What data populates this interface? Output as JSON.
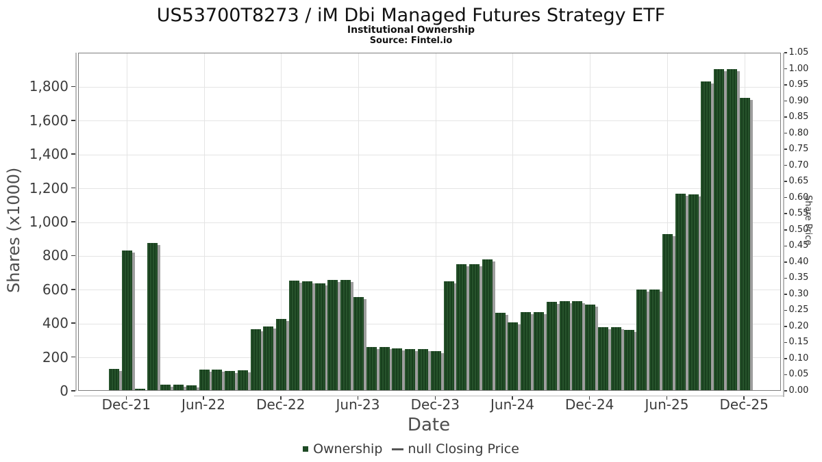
{
  "header": {
    "title": "US53700T8273 / iM Dbi Managed Futures Strategy ETF",
    "subtitle": "Institutional Ownership",
    "source": "Source: Fintel.io"
  },
  "chart_data": {
    "type": "bar",
    "title": "US53700T8273 / iM Dbi Managed Futures Strategy ETF",
    "subtitle": "Institutional Ownership",
    "source": "Source: Fintel.io",
    "xlabel": "Date",
    "ylabel_left": "Shares (x1000)",
    "ylabel_right": "Share Price",
    "x": [
      "Nov-21",
      "Dec-21",
      "Jan-22",
      "Feb-22",
      "Mar-22",
      "Apr-22",
      "May-22",
      "Jun-22",
      "Jul-22",
      "Aug-22",
      "Sep-22",
      "Oct-22",
      "Nov-22",
      "Dec-22",
      "Jan-23",
      "Feb-23",
      "Mar-23",
      "Apr-23",
      "May-23",
      "Jun-23",
      "Jul-23",
      "Aug-23",
      "Sep-23",
      "Oct-23",
      "Nov-23",
      "Dec-23",
      "Jan-24",
      "Feb-24",
      "Mar-24",
      "Apr-24",
      "May-24",
      "Jun-24",
      "Jul-24",
      "Aug-24",
      "Sep-24",
      "Oct-24",
      "Nov-24",
      "Dec-24",
      "Jan-25",
      "Feb-25",
      "Mar-25",
      "Apr-25",
      "May-25",
      "Jun-25",
      "Jul-25",
      "Aug-25",
      "Sep-25",
      "Oct-25",
      "Nov-25",
      "Dec-25"
    ],
    "series": [
      {
        "name": "Ownership",
        "units": "shares x1000",
        "values": [
          135,
          835,
          15,
          880,
          40,
          40,
          35,
          130,
          130,
          120,
          125,
          370,
          385,
          430,
          655,
          650,
          640,
          660,
          660,
          560,
          265,
          265,
          255,
          250,
          250,
          240,
          650,
          755,
          755,
          780,
          465,
          410,
          470,
          470,
          530,
          535,
          535,
          515,
          380,
          380,
          365,
          605,
          605,
          930,
          1170,
          1165,
          1835,
          1905,
          1905,
          1735
        ]
      },
      {
        "name": "null Closing Price",
        "units": "share price",
        "values": []
      }
    ],
    "xticks": [
      "Dec-21",
      "Jun-22",
      "Dec-22",
      "Jun-23",
      "Dec-23",
      "Jun-24",
      "Dec-24",
      "Jun-25",
      "Dec-25"
    ],
    "ylim_left": [
      0,
      2000
    ],
    "ytick_step_left": 200,
    "ylim_right": [
      0,
      1.05
    ],
    "ytick_step_right": 0.05,
    "grid": true,
    "legend": {
      "position": "bottom",
      "ownership_label": "Ownership",
      "price_label": "null Closing Price"
    }
  },
  "colors": {
    "bar_stripe_light": "#27532c",
    "bar_stripe_dark": "#183f1d",
    "bar_shadow": "#9e9e9e",
    "grid": "#e4e4e4",
    "plot_border": "#7d7d7d",
    "spine": "#b9b9b9",
    "tick_text": "#3c3c3c",
    "legend_swatch": "#1e4a25"
  }
}
